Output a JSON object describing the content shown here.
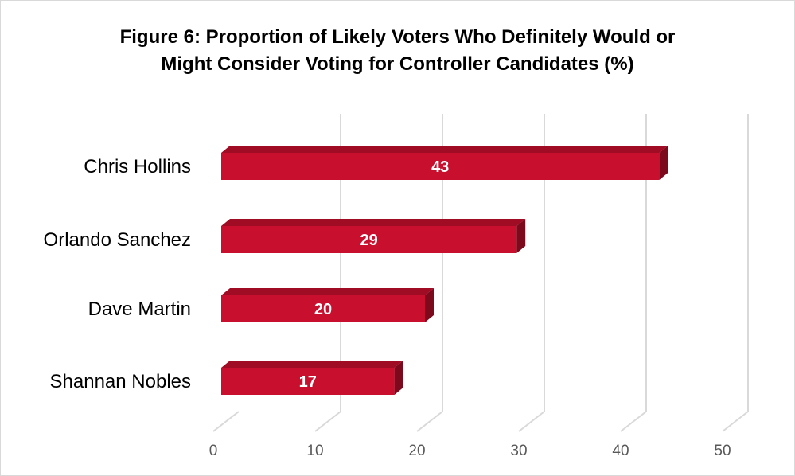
{
  "chart_data": {
    "type": "bar",
    "orientation": "horizontal",
    "title_lines": [
      "Figure 6: Proportion of Likely Voters Who Definitely Would or",
      "Might Consider Voting for Controller Candidates (%)"
    ],
    "categories": [
      "Chris Hollins",
      "Orlando Sanchez",
      "Dave Martin",
      "Shannan Nobles"
    ],
    "values": [
      43,
      29,
      20,
      17
    ],
    "data_labels": [
      "43",
      "29",
      "20",
      "17"
    ],
    "xlim": [
      0,
      50
    ],
    "ticks": [
      "0",
      "10",
      "20",
      "30",
      "40",
      "50"
    ],
    "grid": true,
    "legend": "none",
    "style_3d": true,
    "colors": {
      "bar_front": "#c8102e",
      "bar_top": "#a00c24",
      "bar_side": "#7d0a1c",
      "grid": "#d9d9d9",
      "tick_text": "#595959"
    }
  }
}
